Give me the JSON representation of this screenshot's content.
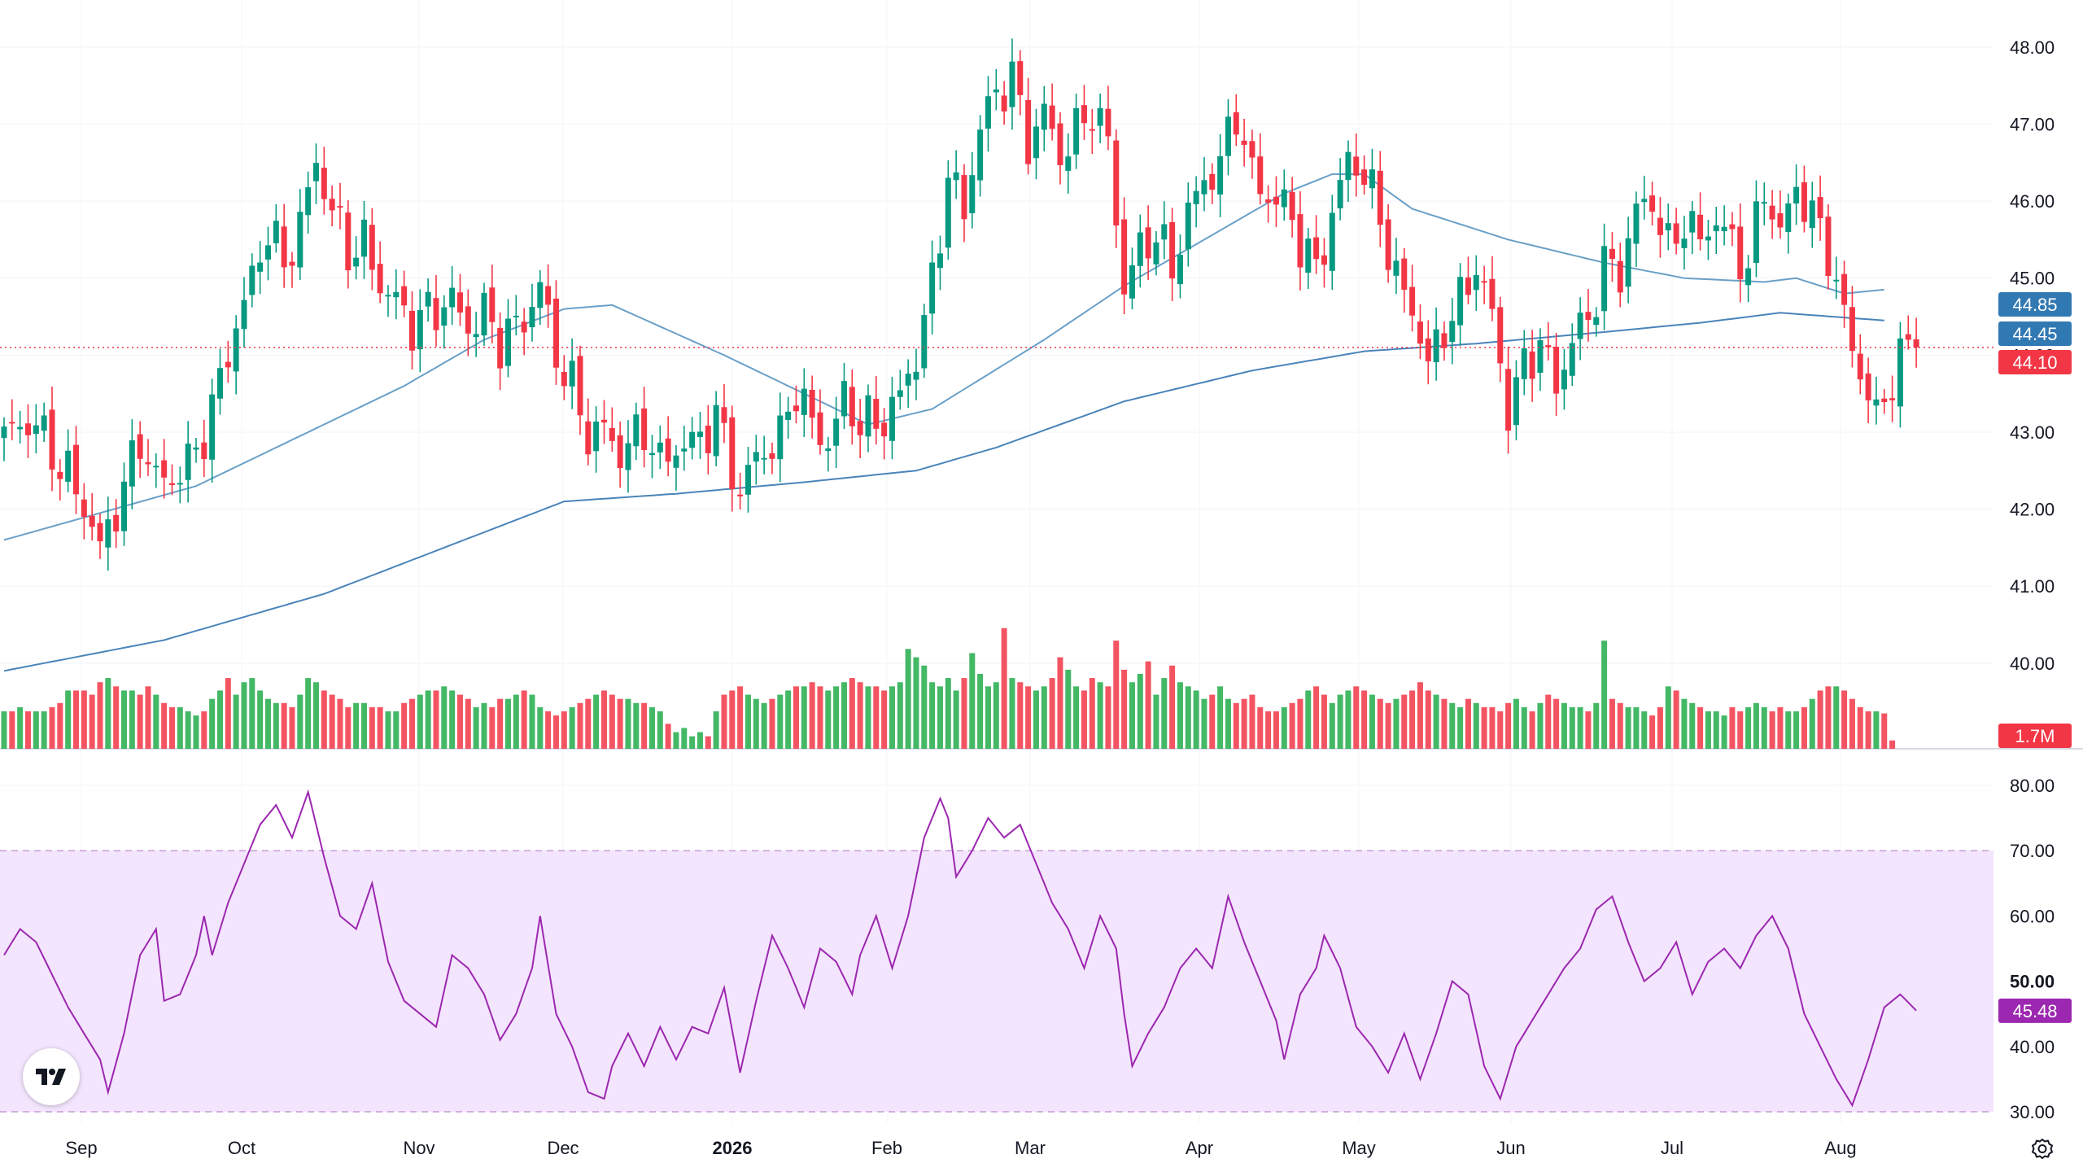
{
  "chart_data": {
    "type": "candlestick",
    "price_axis": {
      "ticks": [
        "48.00",
        "47.00",
        "46.00",
        "45.00",
        "44.00",
        "43.00",
        "42.00",
        "41.00",
        "40.00"
      ],
      "range": [
        39.1,
        48.4
      ]
    },
    "rsi_axis": {
      "ticks": [
        "80.00",
        "70.00",
        "60.00",
        "50.00",
        "40.00",
        "30.00"
      ],
      "range": [
        29.5,
        82.5
      ],
      "band": [
        30,
        70
      ],
      "highlight_tick": "50.00"
    },
    "time_axis": {
      "labels": [
        "Sep",
        "Oct",
        "Nov",
        "Dec",
        "2026",
        "Feb",
        "Mar",
        "Apr",
        "May",
        "Jun",
        "Jul",
        "Aug"
      ],
      "bold": "2026"
    },
    "last_values": {
      "close": {
        "label": "44.10",
        "color": "#f23645"
      },
      "ma_short": {
        "label": "44.85",
        "color": "#3179b3"
      },
      "ma_long": {
        "label": "44.45",
        "color": "#3179b3"
      },
      "volume": {
        "label": "1.7M",
        "color": "#f23645"
      },
      "rsi": {
        "label": "45.48",
        "color": "#9c27b0"
      }
    },
    "price_anchors": [
      [
        0,
        42.9
      ],
      [
        4,
        43.1
      ],
      [
        8,
        42.5
      ],
      [
        10,
        42.0
      ],
      [
        12,
        41.4
      ],
      [
        14,
        42.0
      ],
      [
        17,
        43.0
      ],
      [
        19,
        42.4
      ],
      [
        21,
        42.3
      ],
      [
        24,
        42.7
      ],
      [
        26,
        43.4
      ],
      [
        29,
        44.4
      ],
      [
        31,
        44.9
      ],
      [
        33,
        45.6
      ],
      [
        35,
        45.2
      ],
      [
        37,
        45.8
      ],
      [
        39,
        46.5
      ],
      [
        41,
        45.8
      ],
      [
        43,
        45.3
      ],
      [
        45,
        45.5
      ],
      [
        47,
        45.0
      ],
      [
        49,
        44.7
      ],
      [
        51,
        44.3
      ],
      [
        53,
        44.5
      ],
      [
        56,
        44.8
      ],
      [
        58,
        44.4
      ],
      [
        60,
        44.5
      ],
      [
        62,
        44.1
      ],
      [
        65,
        44.5
      ],
      [
        67,
        45.0
      ],
      [
        69,
        44.0
      ],
      [
        71,
        43.5
      ],
      [
        73,
        42.9
      ],
      [
        75,
        43.1
      ],
      [
        77,
        42.8
      ],
      [
        80,
        43.0
      ],
      [
        82,
        42.5
      ],
      [
        84,
        42.8
      ],
      [
        87,
        43.0
      ],
      [
        89,
        43.2
      ],
      [
        92,
        42.1
      ],
      [
        94,
        42.7
      ],
      [
        97,
        43.0
      ],
      [
        99,
        43.6
      ],
      [
        101,
        43.0
      ],
      [
        103,
        42.8
      ],
      [
        105,
        43.5
      ],
      [
        107,
        43.2
      ],
      [
        110,
        43.1
      ],
      [
        112,
        43.4
      ],
      [
        114,
        44.0
      ],
      [
        116,
        45.0
      ],
      [
        118,
        46.4
      ],
      [
        120,
        45.8
      ],
      [
        122,
        46.9
      ],
      [
        124,
        47.4
      ],
      [
        126,
        47.7
      ],
      [
        128,
        46.8
      ],
      [
        130,
        47.1
      ],
      [
        132,
        46.5
      ],
      [
        134,
        46.9
      ],
      [
        136,
        47.3
      ],
      [
        138,
        46.8
      ],
      [
        140,
        44.8
      ],
      [
        142,
        45.3
      ],
      [
        144,
        45.6
      ],
      [
        146,
        45.2
      ],
      [
        148,
        45.9
      ],
      [
        150,
        46.2
      ],
      [
        152,
        46.4
      ],
      [
        154,
        47.2
      ],
      [
        156,
        46.4
      ],
      [
        158,
        46.1
      ],
      [
        160,
        45.9
      ],
      [
        162,
        45.4
      ],
      [
        164,
        45.1
      ],
      [
        166,
        45.9
      ],
      [
        168,
        46.6
      ],
      [
        170,
        46.3
      ],
      [
        172,
        45.7
      ],
      [
        174,
        45.0
      ],
      [
        176,
        44.7
      ],
      [
        178,
        43.9
      ],
      [
        180,
        44.3
      ],
      [
        182,
        44.6
      ],
      [
        184,
        45.2
      ],
      [
        186,
        44.6
      ],
      [
        188,
        43.3
      ],
      [
        190,
        43.8
      ],
      [
        192,
        44.1
      ],
      [
        194,
        43.6
      ],
      [
        196,
        44.3
      ],
      [
        198,
        44.5
      ],
      [
        200,
        45.1
      ],
      [
        202,
        45.0
      ],
      [
        204,
        45.9
      ],
      [
        206,
        46.1
      ],
      [
        208,
        45.4
      ],
      [
        210,
        45.7
      ],
      [
        212,
        45.4
      ],
      [
        214,
        45.8
      ],
      [
        216,
        45.5
      ],
      [
        218,
        45.2
      ],
      [
        220,
        46.1
      ],
      [
        222,
        45.5
      ],
      [
        224,
        46.2
      ],
      [
        226,
        45.9
      ],
      [
        228,
        45.4
      ],
      [
        230,
        44.4
      ],
      [
        232,
        43.7
      ],
      [
        234,
        43.2
      ],
      [
        236,
        43.8
      ],
      [
        238,
        44.2
      ],
      [
        239,
        44.1
      ]
    ],
    "ma_short_anchors": [
      [
        0,
        41.6
      ],
      [
        24,
        42.3
      ],
      [
        40,
        43.1
      ],
      [
        50,
        43.6
      ],
      [
        60,
        44.2
      ],
      [
        70,
        44.6
      ],
      [
        76,
        44.65
      ],
      [
        90,
        44.0
      ],
      [
        100,
        43.5
      ],
      [
        108,
        43.1
      ],
      [
        116,
        43.3
      ],
      [
        130,
        44.2
      ],
      [
        140,
        44.9
      ],
      [
        150,
        45.5
      ],
      [
        160,
        46.1
      ],
      [
        166,
        46.35
      ],
      [
        170,
        46.35
      ],
      [
        176,
        45.9
      ],
      [
        188,
        45.5
      ],
      [
        200,
        45.2
      ],
      [
        210,
        45.0
      ],
      [
        220,
        44.95
      ],
      [
        224,
        45.0
      ],
      [
        230,
        44.8
      ],
      [
        235,
        44.85
      ]
    ],
    "ma_long_anchors": [
      [
        0,
        39.9
      ],
      [
        20,
        40.3
      ],
      [
        40,
        40.9
      ],
      [
        60,
        41.7
      ],
      [
        70,
        42.1
      ],
      [
        84,
        42.2
      ],
      [
        100,
        42.35
      ],
      [
        114,
        42.5
      ],
      [
        124,
        42.8
      ],
      [
        140,
        43.4
      ],
      [
        156,
        43.8
      ],
      [
        170,
        44.05
      ],
      [
        184,
        44.15
      ],
      [
        200,
        44.3
      ],
      [
        212,
        44.42
      ],
      [
        222,
        44.55
      ],
      [
        235,
        44.45
      ]
    ],
    "volume_bars": [
      18,
      18,
      20,
      18,
      18,
      18,
      20,
      22,
      28,
      28,
      28,
      26,
      32,
      34,
      30,
      28,
      28,
      26,
      30,
      26,
      22,
      20,
      20,
      18,
      16,
      18,
      24,
      28,
      34,
      26,
      32,
      34,
      28,
      24,
      22,
      22,
      20,
      26,
      34,
      32,
      28,
      26,
      24,
      20,
      22,
      22,
      20,
      20,
      18,
      18,
      22,
      24,
      26,
      28,
      28,
      30,
      28,
      26,
      24,
      20,
      22,
      20,
      24,
      24,
      26,
      28,
      26,
      20,
      18,
      16,
      18,
      20,
      22,
      24,
      26,
      28,
      26,
      24,
      24,
      22,
      22,
      20,
      18,
      12,
      8,
      10,
      6,
      8,
      6,
      18,
      26,
      28,
      30,
      26,
      24,
      22,
      24,
      26,
      28,
      30,
      30,
      32,
      30,
      28,
      30,
      32,
      34,
      32,
      30,
      30,
      28,
      30,
      32,
      48,
      44,
      40,
      32,
      30,
      34,
      28,
      34,
      46,
      36,
      30,
      32,
      58,
      34,
      32,
      30,
      28,
      30,
      34,
      44,
      38,
      30,
      28,
      34,
      32,
      30,
      52,
      38,
      32,
      36,
      42,
      26,
      34,
      40,
      32,
      30,
      28,
      24,
      26,
      30,
      24,
      22,
      24,
      26,
      20,
      18,
      18,
      20,
      22,
      24,
      28,
      30,
      26,
      22,
      26,
      28,
      30,
      28,
      26,
      24,
      22,
      24,
      26,
      28,
      32,
      28,
      26,
      24,
      22,
      20,
      24,
      22,
      20,
      20,
      18,
      22,
      24,
      20,
      18,
      22,
      26,
      24,
      22,
      20,
      20,
      18,
      22,
      52,
      24,
      22,
      20,
      20,
      18,
      16,
      20,
      30,
      28,
      24,
      22,
      20,
      18,
      18,
      16,
      20,
      18,
      20,
      22,
      20,
      18,
      20,
      18,
      18,
      20,
      24,
      28,
      30,
      30,
      28,
      24,
      20,
      18,
      18,
      17,
      4
    ],
    "rsi_anchors": [
      [
        0,
        54
      ],
      [
        2,
        58
      ],
      [
        4,
        56
      ],
      [
        6,
        51
      ],
      [
        8,
        46
      ],
      [
        10,
        42
      ],
      [
        12,
        38
      ],
      [
        13,
        33
      ],
      [
        15,
        42
      ],
      [
        17,
        54
      ],
      [
        19,
        58
      ],
      [
        20,
        47
      ],
      [
        22,
        48
      ],
      [
        24,
        54
      ],
      [
        25,
        60
      ],
      [
        26,
        54
      ],
      [
        28,
        62
      ],
      [
        30,
        68
      ],
      [
        32,
        74
      ],
      [
        34,
        77
      ],
      [
        36,
        72
      ],
      [
        38,
        79
      ],
      [
        40,
        69
      ],
      [
        42,
        60
      ],
      [
        44,
        58
      ],
      [
        46,
        65
      ],
      [
        48,
        53
      ],
      [
        50,
        47
      ],
      [
        52,
        45
      ],
      [
        54,
        43
      ],
      [
        56,
        54
      ],
      [
        58,
        52
      ],
      [
        60,
        48
      ],
      [
        62,
        41
      ],
      [
        64,
        45
      ],
      [
        66,
        52
      ],
      [
        67,
        60
      ],
      [
        69,
        45
      ],
      [
        71,
        40
      ],
      [
        73,
        33
      ],
      [
        75,
        32
      ],
      [
        76,
        37
      ],
      [
        78,
        42
      ],
      [
        80,
        37
      ],
      [
        82,
        43
      ],
      [
        84,
        38
      ],
      [
        86,
        43
      ],
      [
        88,
        42
      ],
      [
        90,
        49
      ],
      [
        92,
        36
      ],
      [
        94,
        47
      ],
      [
        96,
        57
      ],
      [
        98,
        52
      ],
      [
        100,
        46
      ],
      [
        102,
        55
      ],
      [
        104,
        53
      ],
      [
        106,
        48
      ],
      [
        107,
        54
      ],
      [
        109,
        60
      ],
      [
        111,
        52
      ],
      [
        113,
        60
      ],
      [
        115,
        72
      ],
      [
        117,
        78
      ],
      [
        118,
        75
      ],
      [
        119,
        66
      ],
      [
        121,
        70
      ],
      [
        123,
        75
      ],
      [
        125,
        72
      ],
      [
        127,
        74
      ],
      [
        129,
        68
      ],
      [
        131,
        62
      ],
      [
        133,
        58
      ],
      [
        135,
        52
      ],
      [
        137,
        60
      ],
      [
        139,
        55
      ],
      [
        140,
        45
      ],
      [
        141,
        37
      ],
      [
        143,
        42
      ],
      [
        145,
        46
      ],
      [
        147,
        52
      ],
      [
        149,
        55
      ],
      [
        151,
        52
      ],
      [
        153,
        63
      ],
      [
        155,
        56
      ],
      [
        157,
        50
      ],
      [
        159,
        44
      ],
      [
        160,
        38
      ],
      [
        162,
        48
      ],
      [
        164,
        52
      ],
      [
        165,
        57
      ],
      [
        167,
        52
      ],
      [
        169,
        43
      ],
      [
        171,
        40
      ],
      [
        173,
        36
      ],
      [
        175,
        42
      ],
      [
        177,
        35
      ],
      [
        179,
        42
      ],
      [
        181,
        50
      ],
      [
        183,
        48
      ],
      [
        185,
        37
      ],
      [
        187,
        32
      ],
      [
        189,
        40
      ],
      [
        191,
        44
      ],
      [
        193,
        48
      ],
      [
        195,
        52
      ],
      [
        197,
        55
      ],
      [
        199,
        61
      ],
      [
        201,
        63
      ],
      [
        203,
        56
      ],
      [
        205,
        50
      ],
      [
        207,
        52
      ],
      [
        209,
        56
      ],
      [
        211,
        48
      ],
      [
        213,
        53
      ],
      [
        215,
        55
      ],
      [
        217,
        52
      ],
      [
        219,
        57
      ],
      [
        221,
        60
      ],
      [
        223,
        55
      ],
      [
        225,
        45
      ],
      [
        227,
        40
      ],
      [
        229,
        35
      ],
      [
        231,
        31
      ],
      [
        233,
        38
      ],
      [
        235,
        46
      ],
      [
        237,
        48
      ],
      [
        239,
        45.5
      ]
    ]
  }
}
